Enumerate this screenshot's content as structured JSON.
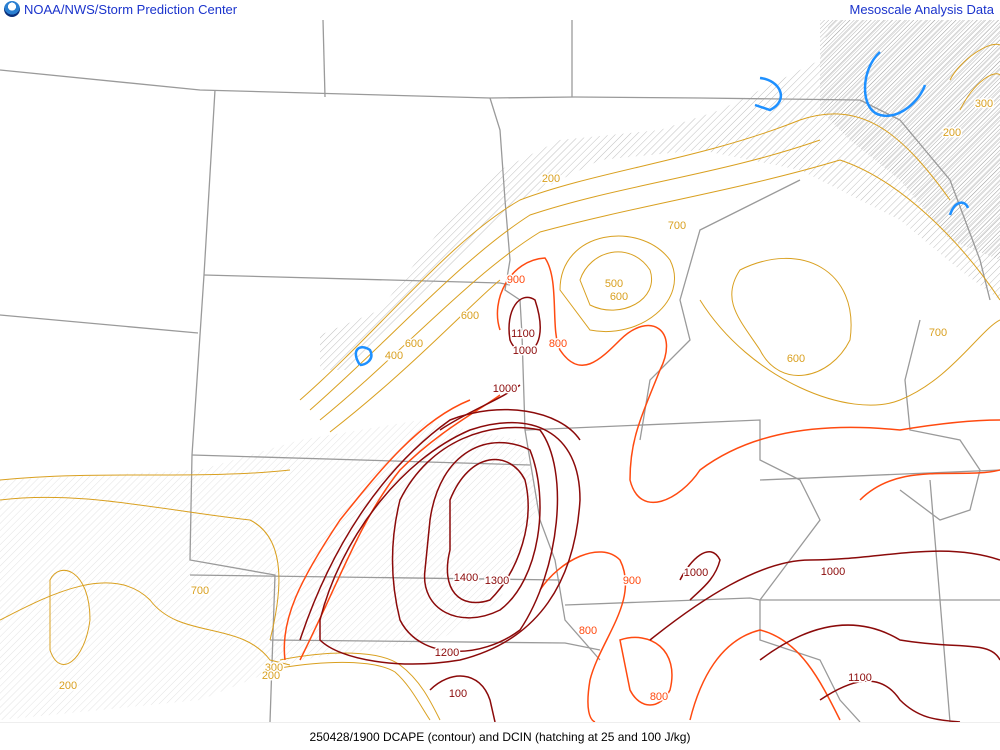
{
  "header": {
    "left_title": "NOAA/NWS/Storm Prediction Center",
    "right_title": "Mesoscale Analysis Data",
    "logo": "noaa-logo"
  },
  "footer": {
    "caption": "250428/1900 DCAPE (contour) and DCIN (hatching at 25 and 100 J/kg)"
  },
  "colors": {
    "low_contour": "#d9a020",
    "mid_contour": "#ff4a10",
    "high_contour": "#8b0a0a",
    "dcin_contour": "#1e90ff",
    "boundaries": "#9a9a9a",
    "hatching": "#b0b0b0",
    "header_text": "#1a33cc"
  },
  "contour_labels": [
    "200",
    "700",
    "500",
    "600",
    "900",
    "600",
    "1100",
    "800",
    "1000",
    "400",
    "600",
    "1000",
    "600",
    "700",
    "300",
    "200",
    "700",
    "200",
    "1400",
    "1300",
    "900",
    "1000",
    "1000",
    "800",
    "1200",
    "800",
    "1100",
    "100",
    "300",
    "200"
  ]
}
